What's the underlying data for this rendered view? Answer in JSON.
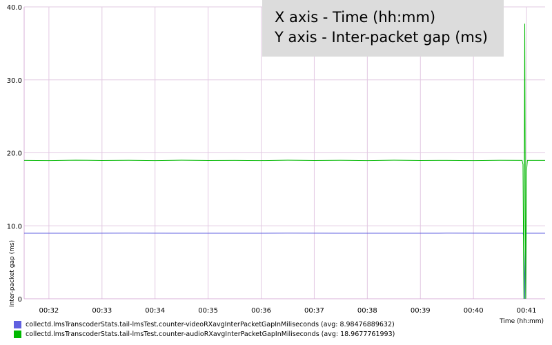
{
  "chart_data": {
    "type": "line",
    "xlabel": "Time (hh:mm)",
    "ylabel": "Inter-packet gap (ms)",
    "ylim": [
      0,
      40
    ],
    "xlim": [
      "00:31:32",
      "00:41:21"
    ],
    "y_ticks": [
      "0",
      "10.0",
      "20.0",
      "30.0",
      "40.0"
    ],
    "x_ticks": [
      "00:32",
      "00:33",
      "00:34",
      "00:35",
      "00:36",
      "00:37",
      "00:38",
      "00:39",
      "00:40",
      "00:41"
    ],
    "grid": true,
    "legend_position": "bottom",
    "series": [
      {
        "name": "collectd.lmsTranscoderStats.tail-lmsTest.counter-videoRXavgInterPacketGapInMiliseconds (avg: 8.98476889632)",
        "color": "#6060e0",
        "points": [
          [
            "00:31:32",
            8.98
          ],
          [
            "00:32:30",
            8.98
          ],
          [
            "00:33:30",
            8.99
          ],
          [
            "00:34:30",
            8.98
          ],
          [
            "00:35:30",
            8.98
          ],
          [
            "00:36:30",
            8.99
          ],
          [
            "00:37:30",
            8.98
          ],
          [
            "00:38:30",
            8.98
          ],
          [
            "00:39:30",
            8.99
          ],
          [
            "00:40:30",
            8.98
          ],
          [
            "00:40:56",
            8.98
          ],
          [
            "00:40:57",
            8.6
          ],
          [
            "00:40:58",
            0
          ],
          [
            "00:40:59",
            9.0
          ],
          [
            "00:41:00",
            8.98
          ],
          [
            "00:41:21",
            8.98
          ]
        ]
      },
      {
        "name": "collectd.lmsTranscoderStats.tail-lmsTest.counter-audioRXavgInterPacketGapInMiliseconds (avg: 18.9677761993)",
        "color": "#00b800",
        "points": [
          [
            "00:31:32",
            18.97
          ],
          [
            "00:32:00",
            18.95
          ],
          [
            "00:32:30",
            19.0
          ],
          [
            "00:33:00",
            18.96
          ],
          [
            "00:33:30",
            18.98
          ],
          [
            "00:34:00",
            18.95
          ],
          [
            "00:34:30",
            18.99
          ],
          [
            "00:35:00",
            18.96
          ],
          [
            "00:35:30",
            18.97
          ],
          [
            "00:36:00",
            18.95
          ],
          [
            "00:36:30",
            18.99
          ],
          [
            "00:37:00",
            18.96
          ],
          [
            "00:37:30",
            18.98
          ],
          [
            "00:38:00",
            18.95
          ],
          [
            "00:38:30",
            18.99
          ],
          [
            "00:39:00",
            18.96
          ],
          [
            "00:39:30",
            18.97
          ],
          [
            "00:40:00",
            18.95
          ],
          [
            "00:40:30",
            18.98
          ],
          [
            "00:40:55",
            18.97
          ],
          [
            "00:40:56",
            18.4
          ],
          [
            "00:40:57",
            0
          ],
          [
            "00:40:58",
            37.7
          ],
          [
            "00:40:59",
            0
          ],
          [
            "00:41:00",
            17.5
          ],
          [
            "00:41:01",
            18.97
          ],
          [
            "00:41:21",
            18.97
          ]
        ]
      }
    ]
  },
  "note": {
    "line1": "X axis - Time (hh:mm)",
    "line2": "Y axis - Inter-packet gap (ms)"
  }
}
